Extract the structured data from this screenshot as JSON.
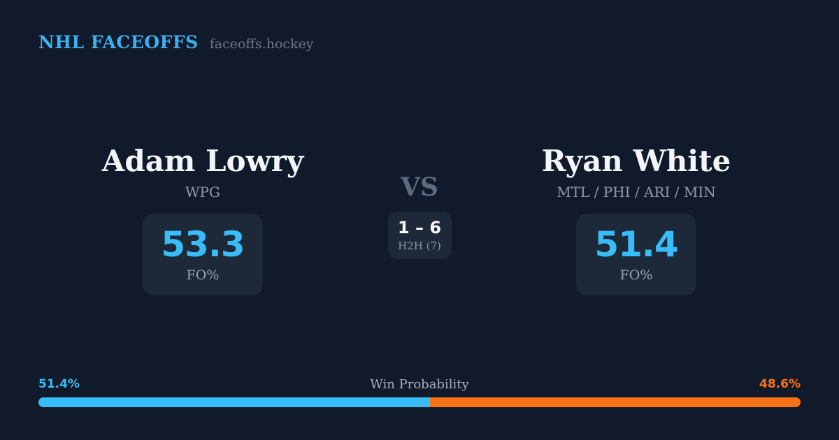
{
  "header": {
    "brand": "NHL FACEOFFS",
    "domain": "faceoffs.hockey"
  },
  "matchup": {
    "left": {
      "name": "Adam Lowry",
      "teams": "WPG",
      "fo_pct": "53.3",
      "stat_label": "FO%"
    },
    "vs_label": "VS",
    "h2h": {
      "record": "1 – 6",
      "label": "H2H (7)"
    },
    "right": {
      "name": "Ryan White",
      "teams": "MTL / PHI / ARI / MIN",
      "fo_pct": "51.4",
      "stat_label": "FO%"
    }
  },
  "win_probability": {
    "title": "Win Probability",
    "left_pct_label": "51.4%",
    "right_pct_label": "48.6%",
    "left_value": 51.4,
    "right_value": 48.6
  },
  "colors": {
    "background": "#101a2b",
    "card_box": "#1d2938",
    "accent_blue": "#38bdf8",
    "brand_blue": "#3db1f0",
    "accent_orange": "#f97316",
    "text_white": "#f2f5fa",
    "text_gray": "#8e99ab"
  }
}
